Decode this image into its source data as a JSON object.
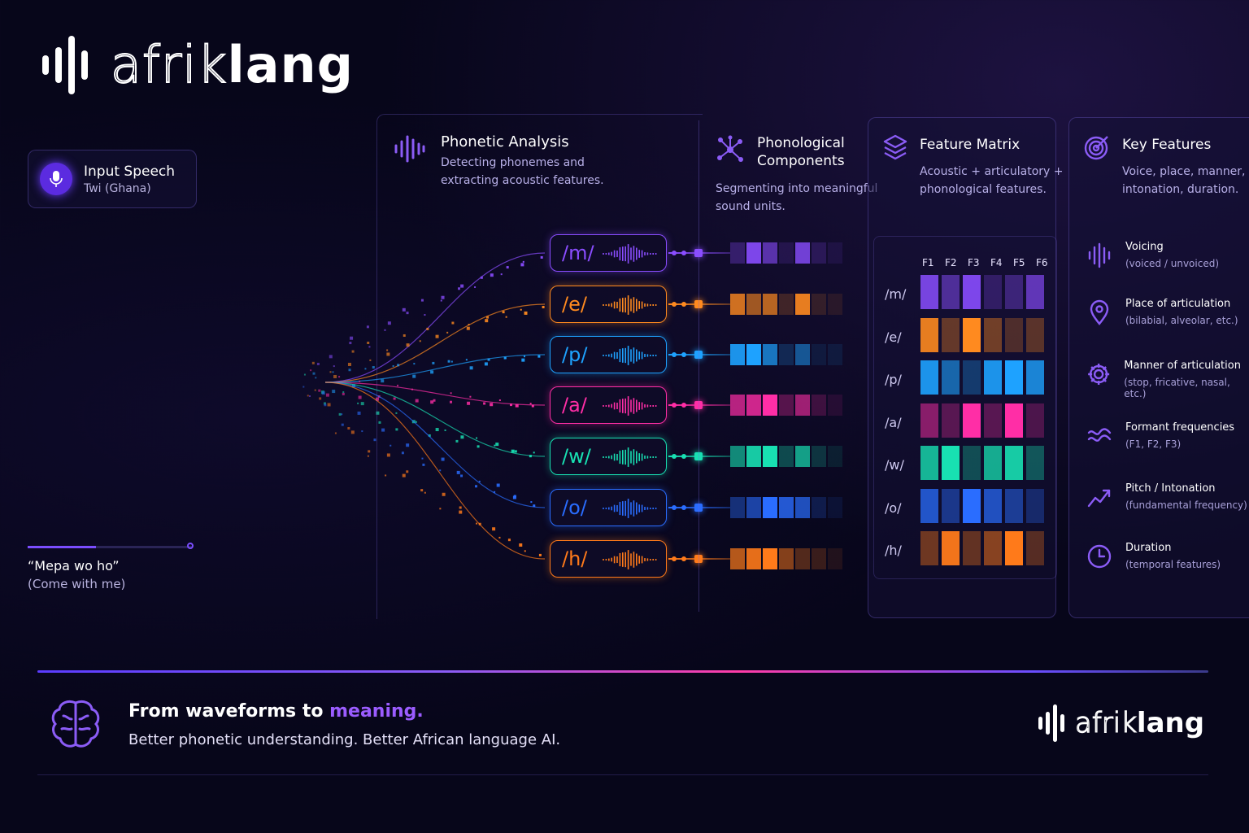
{
  "brand": {
    "light": "afrik",
    "bold": "lang"
  },
  "input": {
    "title": "Input Speech",
    "subtitle": "Twi (Ghana)"
  },
  "phrase": {
    "text": "“Mepa wo ho”",
    "translation": "(Come with me)"
  },
  "phonetic": {
    "title": "Phonetic Analysis",
    "line1": "Detecting phonemes and",
    "line2": "extracting acoustic features."
  },
  "phonological": {
    "title1": "Phonological",
    "title2": "Components",
    "line1": "Segmenting into meaningful",
    "line2": "sound units."
  },
  "matrix": {
    "title": "Feature Matrix",
    "line1": "Acoustic + articulatory +",
    "line2": "phonological features.",
    "columns": [
      "F1",
      "F2",
      "F3",
      "F4",
      "F5",
      "F6"
    ]
  },
  "key": {
    "title": "Key Features",
    "line1": "Voice, place, manner,",
    "line2": "intonation, duration."
  },
  "phonemes": [
    {
      "label": "/m/",
      "color": "#8a4dff"
    },
    {
      "label": "/e/",
      "color": "#ff8a1f"
    },
    {
      "label": "/p/",
      "color": "#1ea2ff"
    },
    {
      "label": "/a/",
      "color": "#ff2ea6"
    },
    {
      "label": "/w/",
      "color": "#18e0b2"
    },
    {
      "label": "/o/",
      "color": "#2a6dff"
    },
    {
      "label": "/h/",
      "color": "#ff7a1a"
    }
  ],
  "features": [
    {
      "name": "Voicing",
      "desc": "(voiced / unvoiced)",
      "icon": "waveform-icon"
    },
    {
      "name": "Place of articulation",
      "desc": "(bilabial, alveolar, etc.)",
      "icon": "location-pin-icon"
    },
    {
      "name": "Manner of articulation",
      "desc": "(stop, fricative, nasal, etc.)",
      "icon": "gear-icon"
    },
    {
      "name": "Formant frequencies",
      "desc": "(F1, F2, F3)",
      "icon": "wave-lines-icon"
    },
    {
      "name": "Pitch / Intonation",
      "desc": "(fundamental frequency)",
      "icon": "trend-chart-icon"
    },
    {
      "name": "Duration",
      "desc": "(temporal features)",
      "icon": "clock-icon"
    }
  ],
  "footer": {
    "tagline_start": "From waveforms to ",
    "tagline_accent": "meaning.",
    "subline": "Better phonetic understanding. Better African language AI."
  },
  "colors": {
    "accent": "#8b5cf6",
    "bg": "#07061a"
  }
}
